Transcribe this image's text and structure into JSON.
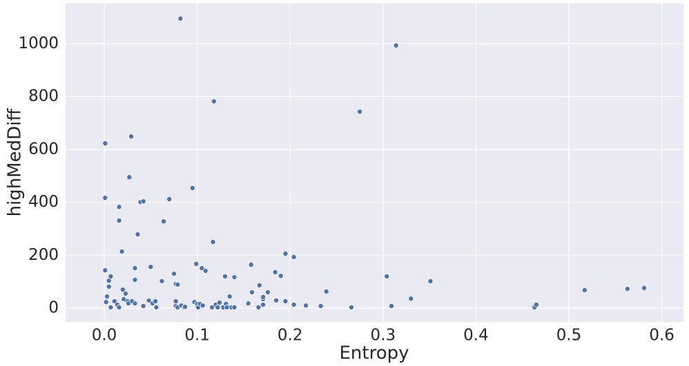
{
  "chart_data": {
    "type": "scatter",
    "xlabel": "Entropy",
    "ylabel": "highMedDiff",
    "x": [
      0.001,
      0.001,
      0.001,
      0.002,
      0.003,
      0.005,
      0.007,
      0.005,
      0.007,
      0.011,
      0.014,
      0.016,
      0.016,
      0.016,
      0.019,
      0.02,
      0.021,
      0.023,
      0.025,
      0.026,
      0.027,
      0.029,
      0.03,
      0.033,
      0.033,
      0.033,
      0.036,
      0.039,
      0.042,
      0.042,
      0.048,
      0.05,
      0.052,
      0.055,
      0.056,
      0.062,
      0.064,
      0.07,
      0.075,
      0.077,
      0.077,
      0.077,
      0.079,
      0.079,
      0.082,
      0.083,
      0.086,
      0.087,
      0.095,
      0.097,
      0.099,
      0.1,
      0.101,
      0.103,
      0.105,
      0.106,
      0.109,
      0.116,
      0.117,
      0.118,
      0.12,
      0.122,
      0.124,
      0.128,
      0.13,
      0.131,
      0.132,
      0.135,
      0.137,
      0.14,
      0.14,
      0.155,
      0.158,
      0.159,
      0.166,
      0.167,
      0.171,
      0.171,
      0.171,
      0.176,
      0.184,
      0.185,
      0.19,
      0.195,
      0.195,
      0.204,
      0.204,
      0.217,
      0.233,
      0.239,
      0.266,
      0.275,
      0.304,
      0.309,
      0.314,
      0.33,
      0.351,
      0.463,
      0.465,
      0.517,
      0.563,
      0.581
    ],
    "values": [
      143,
      623,
      417,
      23,
      44,
      104,
      120,
      81,
      3,
      26,
      13,
      3,
      383,
      331,
      214,
      70,
      34,
      55,
      26,
      18,
      495,
      649,
      26,
      151,
      107,
      18,
      279,
      401,
      404,
      8,
      29,
      156,
      18,
      26,
      3,
      102,
      328,
      412,
      130,
      91,
      26,
      8,
      89,
      3,
      1095,
      10,
      3,
      5,
      454,
      23,
      167,
      16,
      3,
      16,
      151,
      10,
      141,
      3,
      250,
      782,
      13,
      3,
      21,
      3,
      120,
      16,
      3,
      44,
      3,
      117,
      3,
      18,
      164,
      60,
      3,
      86,
      34,
      13,
      42,
      60,
      136,
      29,
      122,
      206,
      26,
      13,
      193,
      10,
      8,
      63,
      3,
      743,
      120,
      8,
      993,
      36,
      102,
      3,
      13,
      68,
      73,
      76
    ],
    "color": "#4c72b0",
    "xlim": [
      -0.0416,
      0.6233
    ],
    "ylim": [
      -52,
      1152
    ],
    "xticks": [
      {
        "value": 0,
        "label": "0.0"
      },
      0.1,
      0.2,
      0.3,
      0.4,
      0.5,
      0.6
    ],
    "yticks": [
      0,
      200,
      400,
      600,
      800,
      1000
    ],
    "grid": true
  }
}
